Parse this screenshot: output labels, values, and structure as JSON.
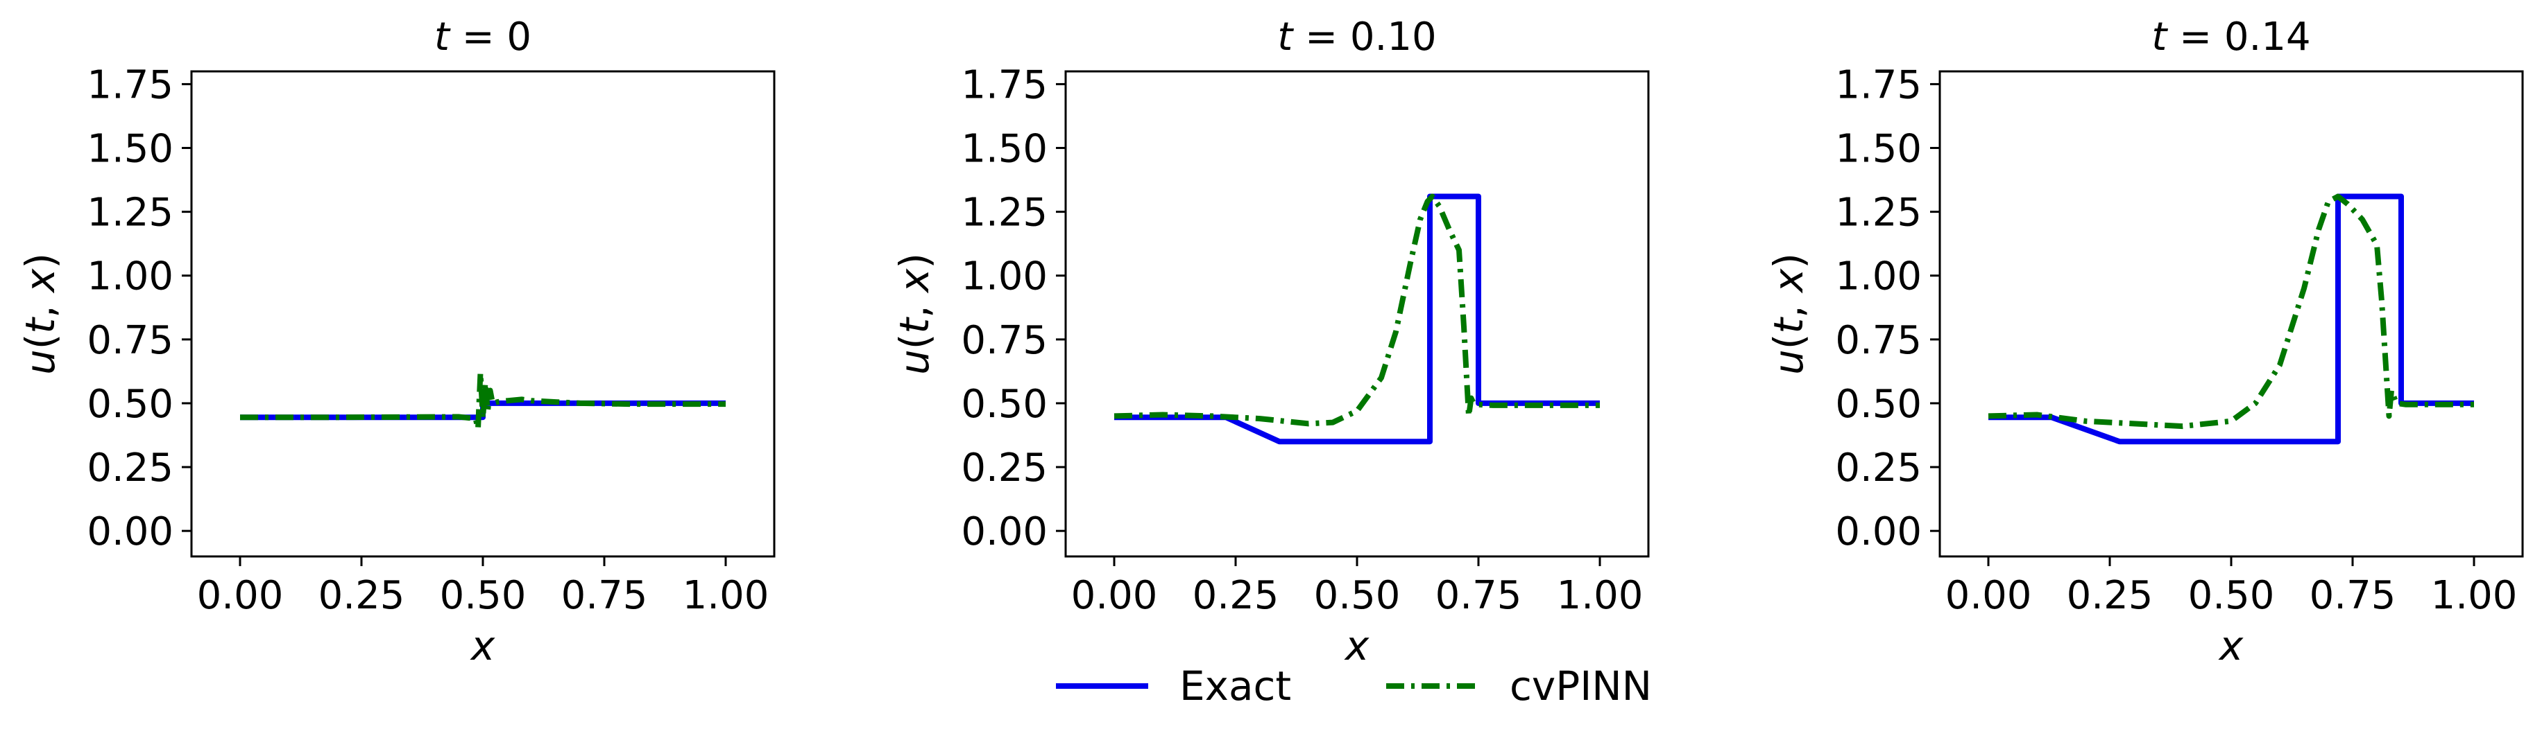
{
  "colors": {
    "exact": "#0000ee",
    "cvpinn": "#007700",
    "axes": "#000000",
    "background": "#ffffff"
  },
  "legend": {
    "placement": "bottom-center",
    "exact_label": "Exact",
    "cvpinn_label": "cvPINN"
  },
  "chart_data": [
    {
      "type": "line",
      "title": "t = 0",
      "title_math": {
        "var": "t",
        "value": "0"
      },
      "xlabel": "x",
      "ylabel": "u(t, x)",
      "xlim": [
        -0.1,
        1.1
      ],
      "ylim": [
        -0.1,
        1.8
      ],
      "xticks": [
        0.0,
        0.25,
        0.5,
        0.75,
        1.0
      ],
      "xtick_labels": [
        "0.00",
        "0.25",
        "0.50",
        "0.75",
        "1.00"
      ],
      "yticks": [
        0.0,
        0.25,
        0.5,
        0.75,
        1.0,
        1.25,
        1.5,
        1.75
      ],
      "ytick_labels": [
        "0.00",
        "0.25",
        "0.50",
        "0.75",
        "1.00",
        "1.25",
        "1.50",
        "1.75"
      ],
      "grid": false,
      "series": [
        {
          "name": "Exact",
          "style": "solid",
          "x": [
            0.0,
            0.5,
            0.5,
            1.0
          ],
          "y": [
            0.445,
            0.445,
            0.5,
            0.5
          ]
        },
        {
          "name": "cvPINN",
          "style": "dashdot",
          "x": [
            0.0,
            0.2,
            0.45,
            0.485,
            0.49,
            0.495,
            0.5,
            0.505,
            0.51,
            0.515,
            0.52,
            0.53,
            0.55,
            0.58,
            0.6,
            0.65,
            0.7,
            0.8,
            0.9,
            1.0
          ],
          "y": [
            0.445,
            0.445,
            0.447,
            0.44,
            0.4,
            0.62,
            0.44,
            0.58,
            0.47,
            0.55,
            0.5,
            0.505,
            0.51,
            0.515,
            0.51,
            0.505,
            0.5,
            0.497,
            0.497,
            0.497
          ]
        }
      ]
    },
    {
      "type": "line",
      "title": "t = 0.10",
      "title_math": {
        "var": "t",
        "value": "0.10"
      },
      "xlabel": "x",
      "ylabel": "u(t, x)",
      "xlim": [
        -0.1,
        1.1
      ],
      "ylim": [
        -0.1,
        1.8
      ],
      "xticks": [
        0.0,
        0.25,
        0.5,
        0.75,
        1.0
      ],
      "xtick_labels": [
        "0.00",
        "0.25",
        "0.50",
        "0.75",
        "1.00"
      ],
      "yticks": [
        0.0,
        0.25,
        0.5,
        0.75,
        1.0,
        1.25,
        1.5,
        1.75
      ],
      "ytick_labels": [
        "0.00",
        "0.25",
        "0.50",
        "0.75",
        "1.00",
        "1.25",
        "1.50",
        "1.75"
      ],
      "grid": false,
      "series": [
        {
          "name": "Exact",
          "style": "solid",
          "x": [
            0.0,
            0.23,
            0.34,
            0.65,
            0.65,
            0.75,
            0.75,
            1.0
          ],
          "y": [
            0.445,
            0.445,
            0.35,
            0.35,
            1.31,
            1.31,
            0.5,
            0.5
          ]
        },
        {
          "name": "cvPINN",
          "style": "dashdot",
          "x": [
            0.0,
            0.1,
            0.2,
            0.3,
            0.4,
            0.45,
            0.5,
            0.55,
            0.58,
            0.61,
            0.63,
            0.645,
            0.655,
            0.67,
            0.69,
            0.71,
            0.72,
            0.73,
            0.735,
            0.74,
            0.75,
            0.78,
            0.85,
            1.0
          ],
          "y": [
            0.45,
            0.455,
            0.45,
            0.44,
            0.42,
            0.425,
            0.47,
            0.6,
            0.78,
            1.05,
            1.22,
            1.29,
            1.31,
            1.27,
            1.18,
            1.1,
            0.8,
            0.45,
            0.52,
            0.5,
            0.495,
            0.492,
            0.492,
            0.492
          ]
        }
      ]
    },
    {
      "type": "line",
      "title": "t = 0.14",
      "title_math": {
        "var": "t",
        "value": "0.14"
      },
      "xlabel": "x",
      "ylabel": "u(t, x)",
      "xlim": [
        -0.1,
        1.1
      ],
      "ylim": [
        -0.1,
        1.8
      ],
      "xticks": [
        0.0,
        0.25,
        0.5,
        0.75,
        1.0
      ],
      "xtick_labels": [
        "0.00",
        "0.25",
        "0.50",
        "0.75",
        "1.00"
      ],
      "yticks": [
        0.0,
        0.25,
        0.5,
        0.75,
        1.0,
        1.25,
        1.5,
        1.75
      ],
      "ytick_labels": [
        "0.00",
        "0.25",
        "0.50",
        "0.75",
        "1.00",
        "1.25",
        "1.50",
        "1.75"
      ],
      "grid": false,
      "series": [
        {
          "name": "Exact",
          "style": "solid",
          "x": [
            0.0,
            0.13,
            0.27,
            0.72,
            0.72,
            0.85,
            0.85,
            1.0
          ],
          "y": [
            0.445,
            0.445,
            0.35,
            0.35,
            1.31,
            1.31,
            0.5,
            0.5
          ]
        },
        {
          "name": "cvPINN",
          "style": "dashdot",
          "x": [
            0.0,
            0.1,
            0.2,
            0.3,
            0.4,
            0.5,
            0.55,
            0.6,
            0.65,
            0.68,
            0.7,
            0.72,
            0.74,
            0.77,
            0.8,
            0.81,
            0.82,
            0.825,
            0.83,
            0.84,
            0.86,
            0.9,
            1.0
          ],
          "y": [
            0.45,
            0.455,
            0.43,
            0.42,
            0.41,
            0.43,
            0.5,
            0.65,
            0.95,
            1.18,
            1.29,
            1.31,
            1.28,
            1.22,
            1.12,
            0.9,
            0.6,
            0.45,
            0.55,
            0.5,
            0.495,
            0.495,
            0.495
          ]
        }
      ]
    }
  ]
}
